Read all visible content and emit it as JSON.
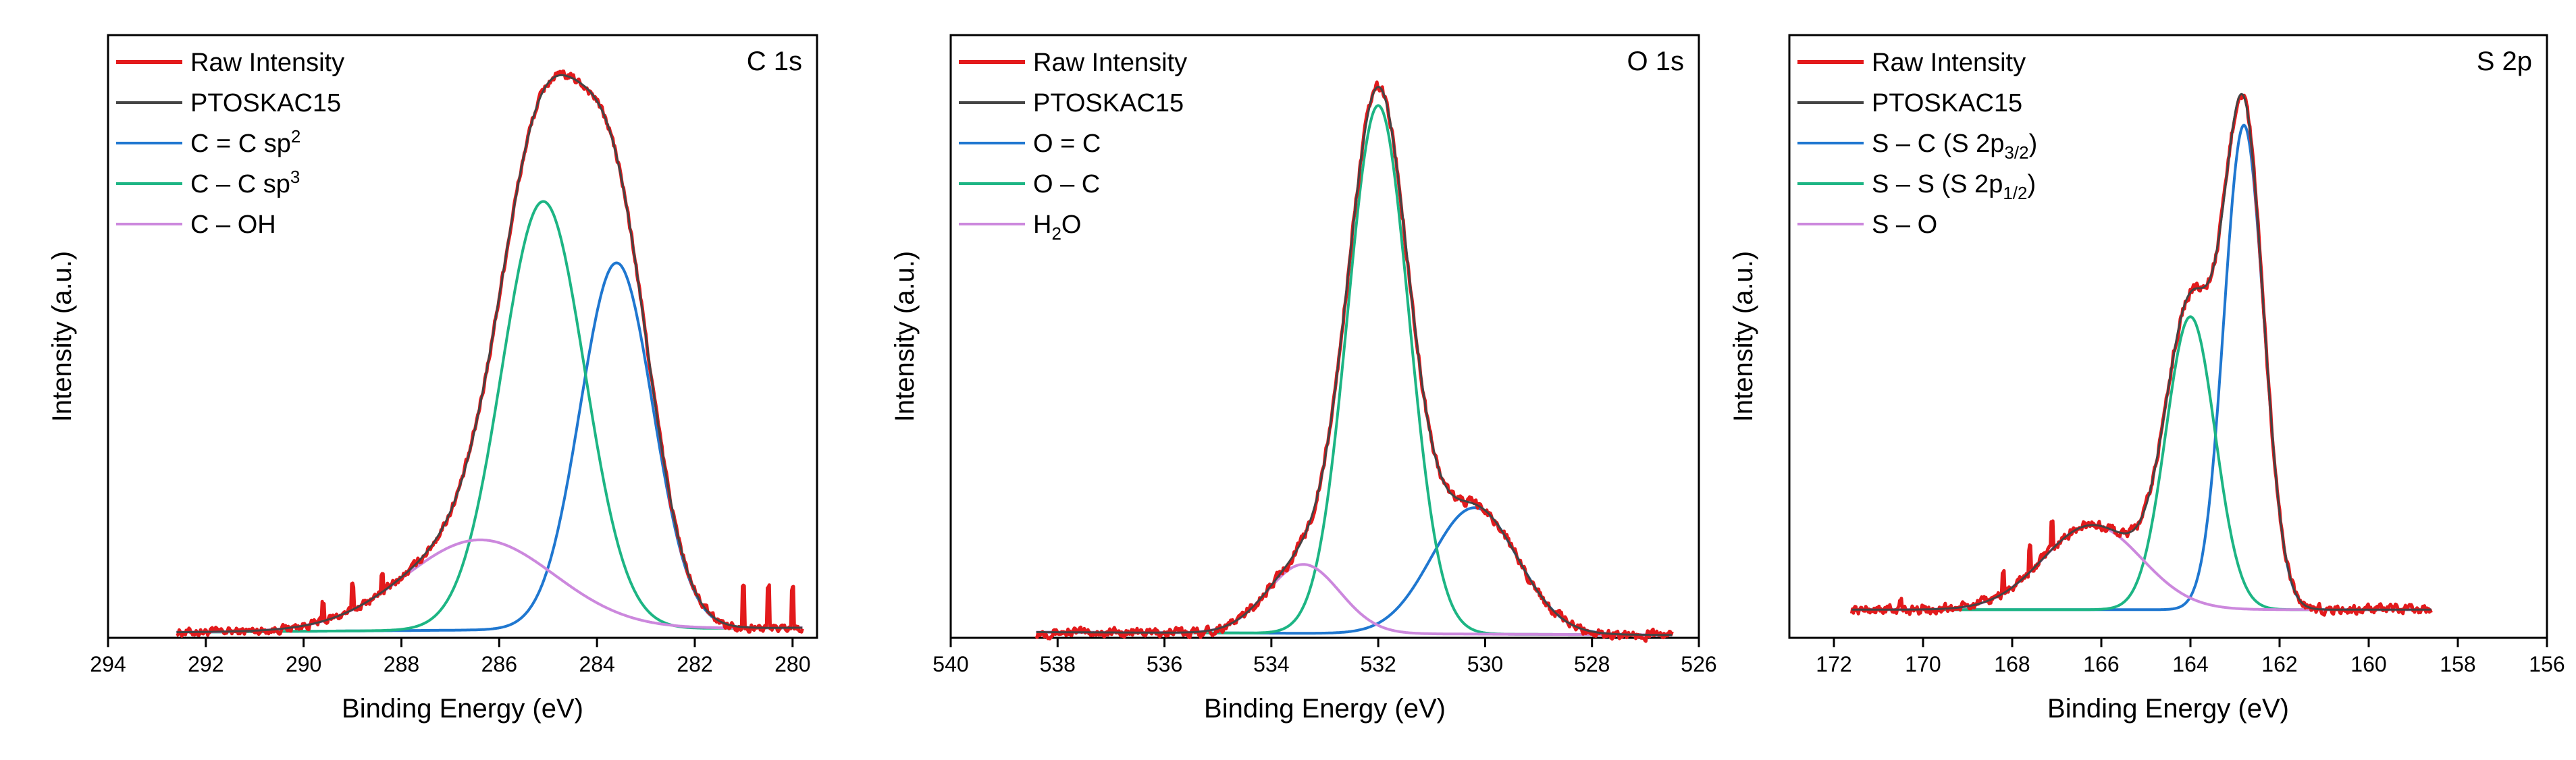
{
  "chart_data": [
    {
      "type": "line",
      "panel_label": "C 1s",
      "xlabel": "Binding Energy (eV)",
      "ylabel": "Intensity (a.u.)",
      "xlim": [
        294,
        279.5
      ],
      "ylim": [
        0,
        1.07
      ],
      "x_ticks": [
        "294",
        "292",
        "290",
        "288",
        "286",
        "284",
        "282",
        "280"
      ],
      "x_tick_values": [
        294,
        292,
        290,
        288,
        286,
        284,
        282,
        280
      ],
      "legend_position": "top-left",
      "x_range": [
        292.6,
        279.8
      ],
      "legend": [
        {
          "key": "raw",
          "label": "Raw Intensity",
          "color": "#e31a1c"
        },
        {
          "key": "fit",
          "label": "PTOSKAC15",
          "color": "#444444"
        },
        {
          "key": "c1",
          "label": "C = C sp",
          "sup": "2",
          "color": "#1f77d0"
        },
        {
          "key": "c2",
          "label": "C – C sp",
          "sup": "3",
          "color": "#1db584"
        },
        {
          "key": "c3",
          "label": "C – OH",
          "color": "#cc88dd"
        }
      ],
      "background": [
        0.01,
        0.018
      ],
      "components": [
        {
          "key": "c1",
          "center": 283.6,
          "height": 0.65,
          "fwhm": 1.75
        },
        {
          "key": "c2",
          "center": 285.1,
          "height": 0.76,
          "fwhm": 2.0
        },
        {
          "key": "c3",
          "center": 286.4,
          "height": 0.16,
          "fwhm": 3.6
        }
      ],
      "noise": 0.008,
      "spikes": [
        {
          "x": 289.6,
          "h": 0.03
        },
        {
          "x": 289.0,
          "h": 0.04
        },
        {
          "x": 288.4,
          "h": 0.035
        },
        {
          "x": 281.0,
          "h": 0.08
        },
        {
          "x": 280.5,
          "h": 0.07
        },
        {
          "x": 280.0,
          "h": 0.07
        }
      ]
    },
    {
      "type": "line",
      "panel_label": "O 1s",
      "xlabel": "Binding Energy (eV)",
      "ylabel": "Intensity (a.u.)",
      "xlim": [
        540,
        526
      ],
      "ylim": [
        0,
        1.05
      ],
      "x_ticks": [
        "540",
        "538",
        "536",
        "534",
        "532",
        "530",
        "528",
        "526"
      ],
      "x_tick_values": [
        540,
        538,
        536,
        534,
        532,
        530,
        528,
        526
      ],
      "legend_position": "top-left",
      "x_range": [
        538.4,
        526.5
      ],
      "legend": [
        {
          "key": "raw",
          "label": "Raw Intensity",
          "color": "#e31a1c"
        },
        {
          "key": "fit",
          "label": "PTOSKAC15",
          "color": "#444444"
        },
        {
          "key": "c1",
          "label": "O = C",
          "color": "#1f77d0"
        },
        {
          "key": "c2",
          "label": "O – C",
          "color": "#1db584"
        },
        {
          "key": "c3",
          "label": "H",
          "sub": "2",
          "suffix": "O",
          "color": "#cc88dd"
        }
      ],
      "background": [
        0.01,
        0.005
      ],
      "components": [
        {
          "key": "c1",
          "center": 530.2,
          "height": 0.22,
          "fwhm": 1.9
        },
        {
          "key": "c2",
          "center": 532.0,
          "height": 0.92,
          "fwhm": 1.35
        },
        {
          "key": "c3",
          "center": 533.4,
          "height": 0.12,
          "fwhm": 1.6
        }
      ],
      "noise": 0.009,
      "spikes": []
    },
    {
      "type": "line",
      "panel_label": "S 2p",
      "xlabel": "Binding Energy (eV)",
      "ylabel": "Intensity (a.u.)",
      "xlim": [
        173,
        156
      ],
      "ylim": [
        0,
        1.07
      ],
      "x_ticks": [
        "172",
        "170",
        "168",
        "166",
        "164",
        "162",
        "160",
        "158",
        "156"
      ],
      "x_tick_values": [
        172,
        170,
        168,
        166,
        164,
        162,
        160,
        158,
        156
      ],
      "legend_position": "top-left",
      "x_range": [
        171.6,
        158.6
      ],
      "legend": [
        {
          "key": "raw",
          "label": "Raw Intensity",
          "color": "#e31a1c"
        },
        {
          "key": "fit",
          "label": "PTOSKAC15",
          "color": "#444444"
        },
        {
          "key": "c1",
          "label": "S – C (S 2p",
          "sub": "3/2",
          "suffix": ")",
          "color": "#1f77d0"
        },
        {
          "key": "c2",
          "label": "S – S (S 2p",
          "sub": "1/2",
          "suffix": ")",
          "color": "#1db584"
        },
        {
          "key": "c3",
          "label": "S – O",
          "color": "#cc88dd"
        }
      ],
      "background": [
        0.05,
        0.05
      ],
      "components": [
        {
          "key": "c1",
          "center": 162.8,
          "height": 0.86,
          "fwhm": 1.05
        },
        {
          "key": "c2",
          "center": 164.0,
          "height": 0.52,
          "fwhm": 1.3
        },
        {
          "key": "c3",
          "center": 166.2,
          "height": 0.15,
          "fwhm": 2.6
        }
      ],
      "noise": 0.009,
      "spikes": [
        {
          "x": 168.2,
          "h": 0.04
        },
        {
          "x": 167.6,
          "h": 0.045
        },
        {
          "x": 167.1,
          "h": 0.04
        },
        {
          "x": 170.5,
          "h": 0.015
        }
      ]
    }
  ]
}
